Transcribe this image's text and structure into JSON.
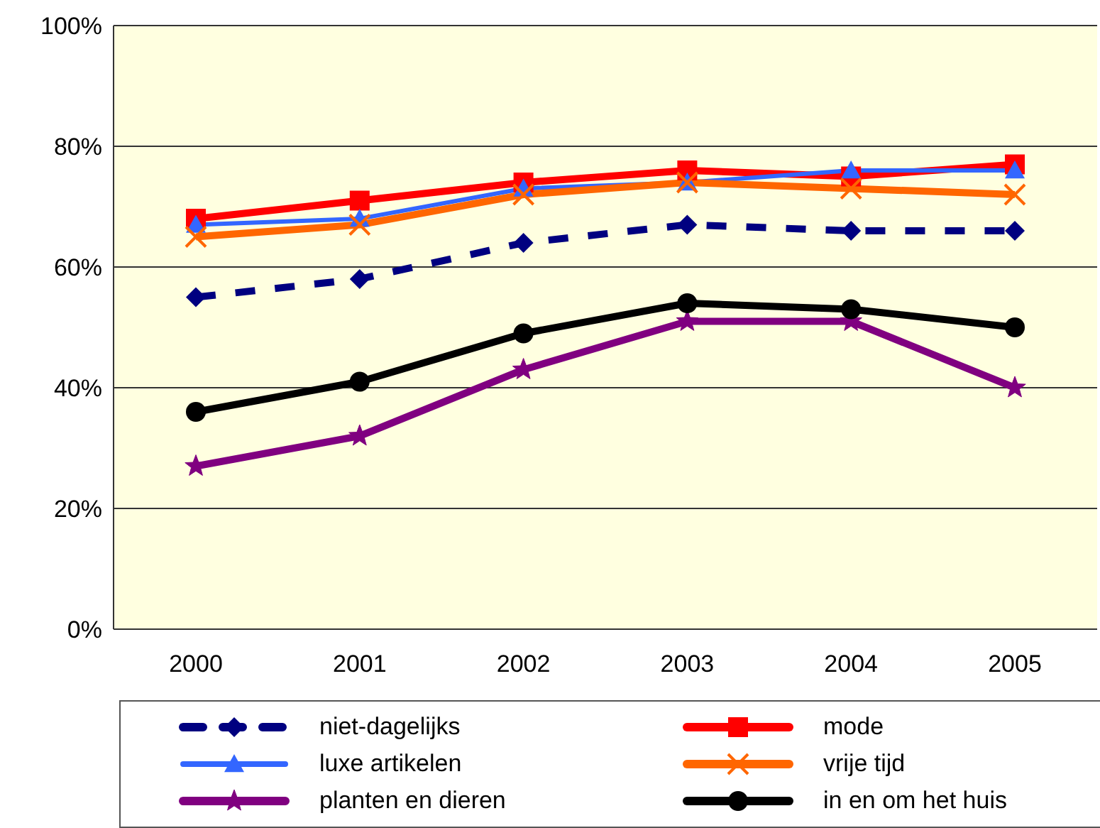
{
  "chart_data": {
    "type": "line",
    "categories": [
      "2000",
      "2001",
      "2002",
      "2003",
      "2004",
      "2005"
    ],
    "series": [
      {
        "name": "niet-dagelijks",
        "color": "#000080",
        "marker": "diamond",
        "line_style": "dashed",
        "values": [
          55,
          58,
          64,
          67,
          66,
          66
        ]
      },
      {
        "name": "mode",
        "color": "#ff0000",
        "marker": "square",
        "values": [
          68,
          71,
          74,
          76,
          75,
          77
        ]
      },
      {
        "name": "luxe artikelen",
        "color": "#3366ff",
        "marker": "triangle",
        "values": [
          67,
          68,
          73,
          74,
          76,
          76
        ]
      },
      {
        "name": "vrije tijd",
        "color": "#ff6600",
        "marker": "cross",
        "values": [
          65,
          67,
          72,
          74,
          73,
          72
        ]
      },
      {
        "name": "planten en dieren",
        "color": "#800080",
        "marker": "star",
        "values": [
          27,
          32,
          43,
          51,
          51,
          40
        ]
      },
      {
        "name": "in en om het huis",
        "color": "#000000",
        "marker": "circle",
        "values": [
          36,
          41,
          49,
          54,
          53,
          50
        ]
      }
    ],
    "ylim": [
      0,
      100
    ],
    "yticks": [
      {
        "value": 0,
        "label": "0%"
      },
      {
        "value": 20,
        "label": "20%"
      },
      {
        "value": 40,
        "label": "40%"
      },
      {
        "value": 60,
        "label": "60%"
      },
      {
        "value": 80,
        "label": "80%"
      },
      {
        "value": 100,
        "label": "100%"
      }
    ],
    "grid": "y",
    "legend": "bottom"
  }
}
